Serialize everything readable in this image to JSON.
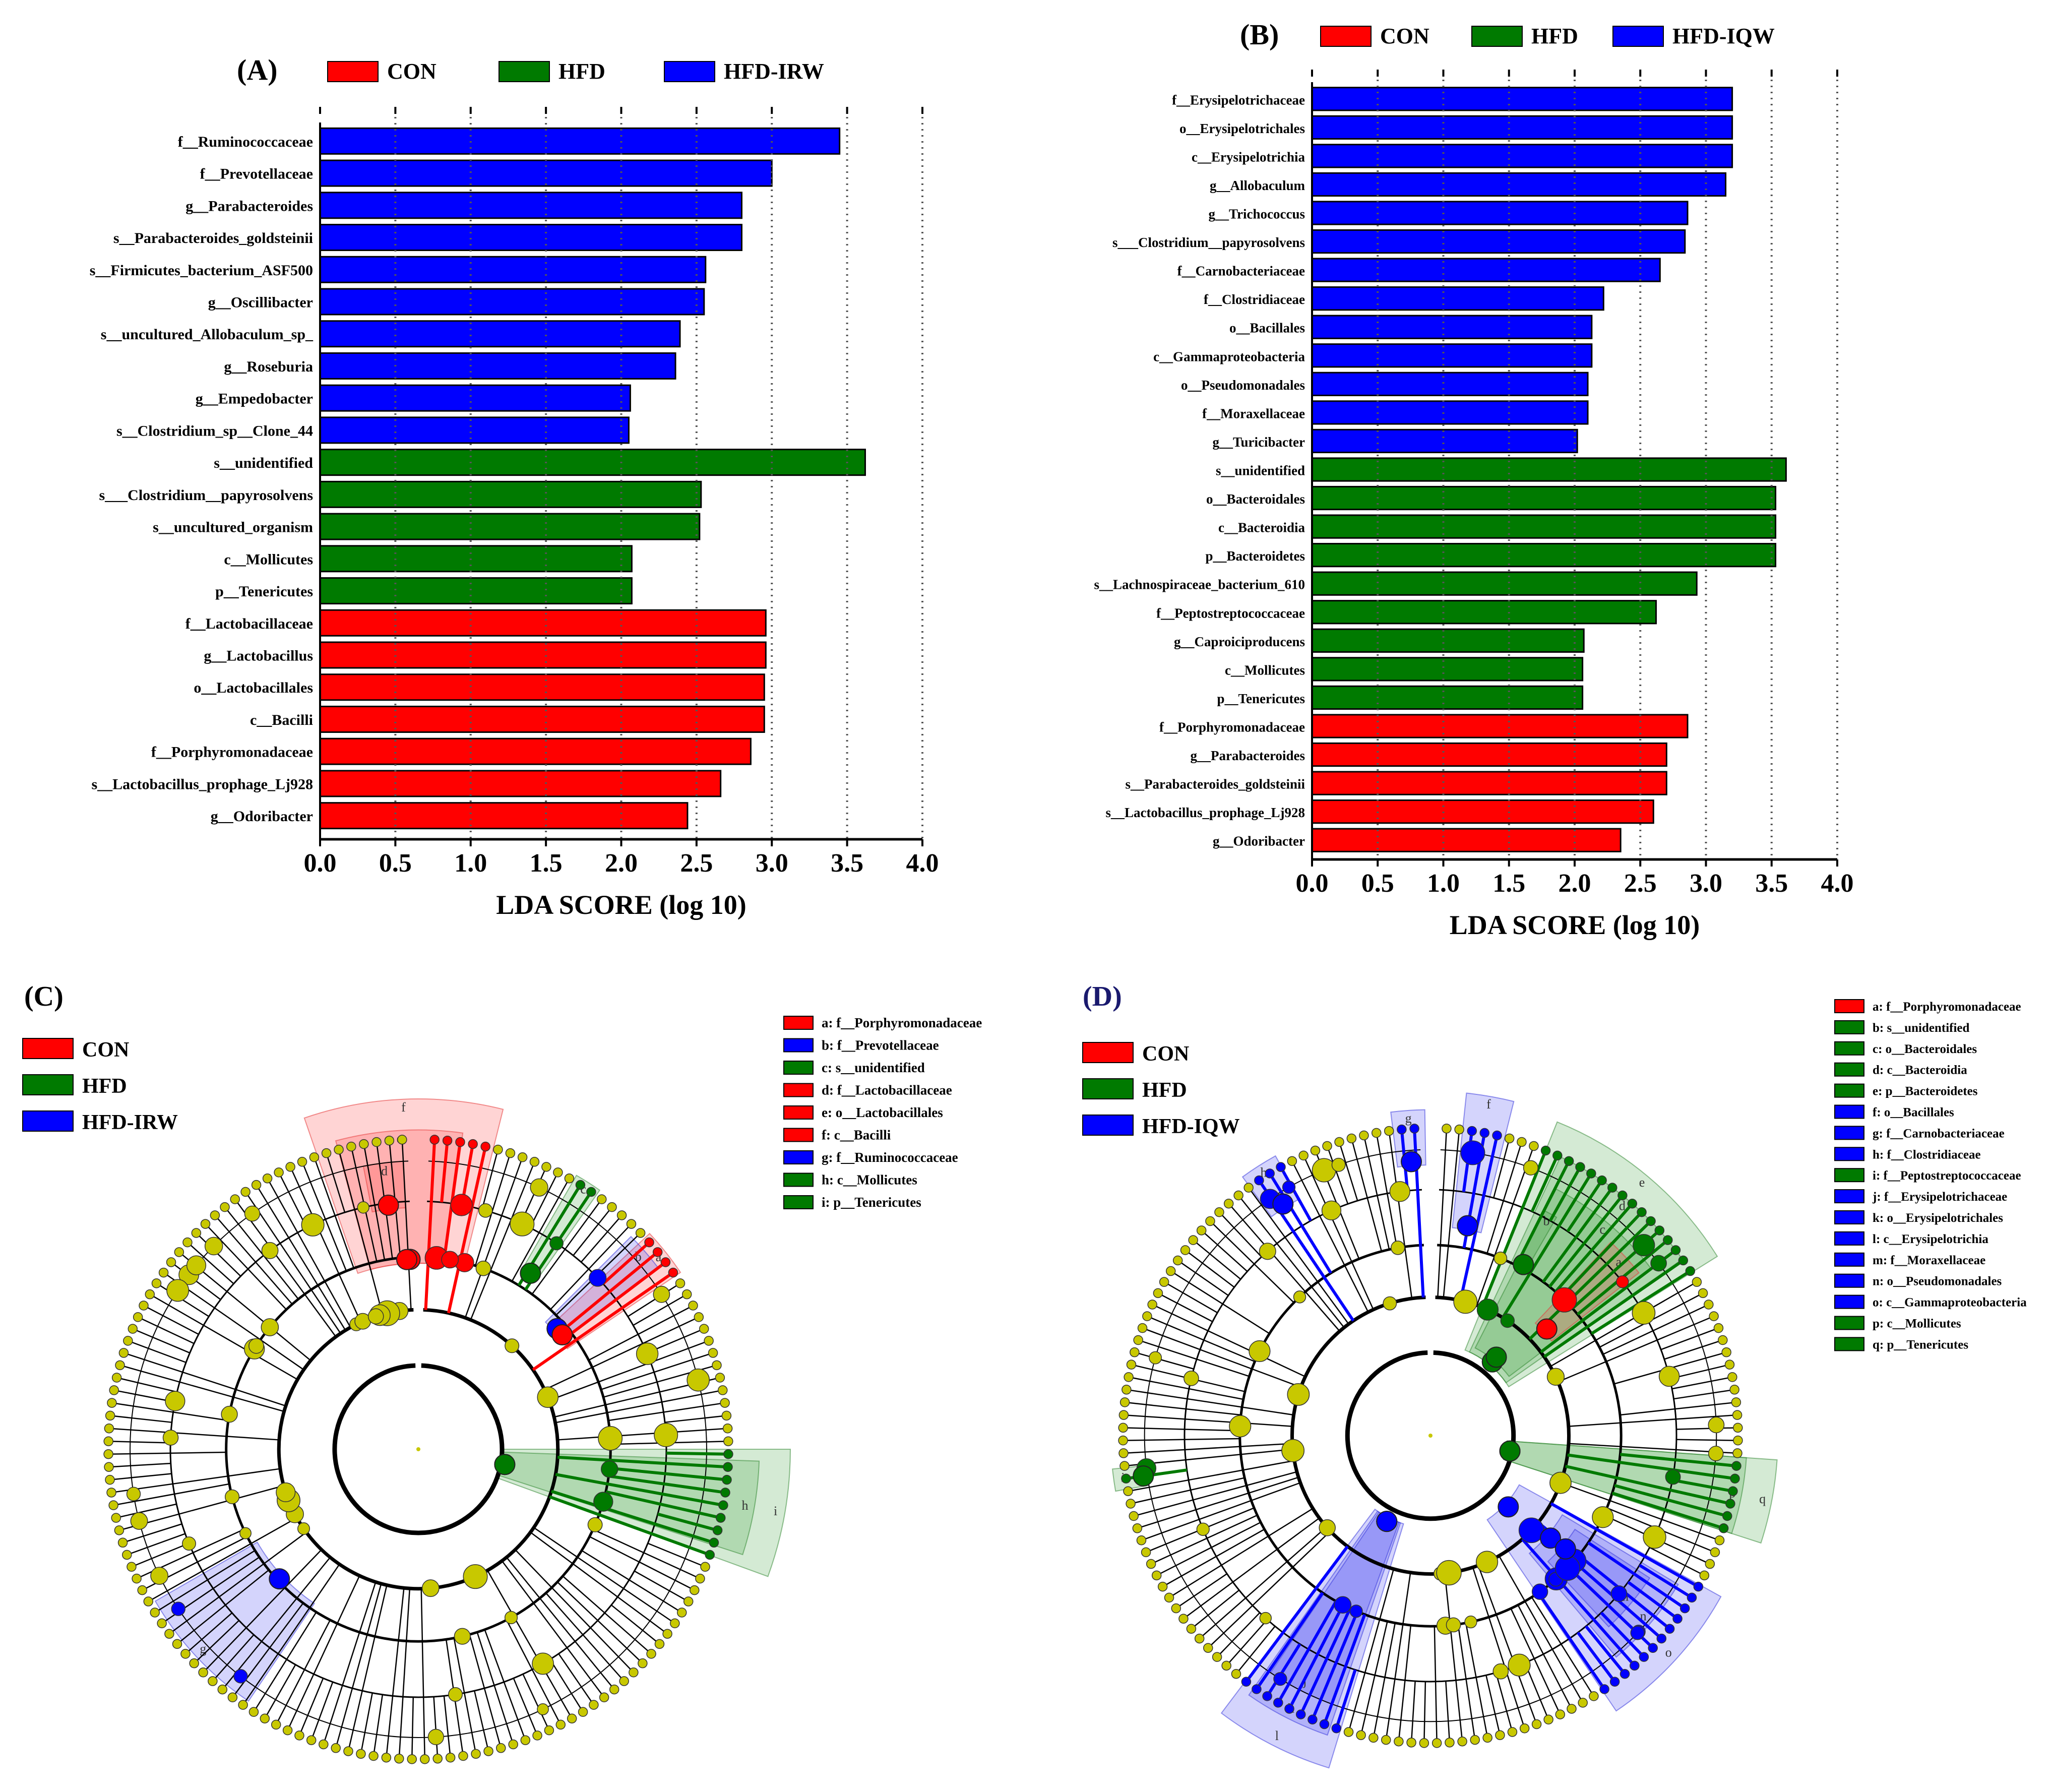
{
  "colors": {
    "CON": "#ff0000",
    "HFD": "#007a00",
    "HFD-IRW": "#0000ff",
    "HFD-IQW": "#0000ff",
    "node": "#c8c800"
  },
  "chart_data": [
    {
      "panel": "(A)",
      "type": "bar",
      "orientation": "horizontal",
      "xlabel": "LDA SCORE (log 10)",
      "xlim": [
        0,
        4
      ],
      "xticks": [
        "0.0",
        "0.5",
        "1.0",
        "1.5",
        "2.0",
        "2.5",
        "3.0",
        "3.5",
        "4.0"
      ],
      "legend": [
        "CON",
        "HFD",
        "HFD-IRW"
      ],
      "legend_placement": "top",
      "bars": [
        {
          "label": "f__Ruminococcaceae",
          "value": 3.45,
          "group": "HFD-IRW"
        },
        {
          "label": "f__Prevotellaceae",
          "value": 3.0,
          "group": "HFD-IRW"
        },
        {
          "label": "g__Parabacteroides",
          "value": 2.8,
          "group": "HFD-IRW"
        },
        {
          "label": "s__Parabacteroides_goldsteinii",
          "value": 2.8,
          "group": "HFD-IRW"
        },
        {
          "label": "s__Firmicutes_bacterium_ASF500",
          "value": 2.56,
          "group": "HFD-IRW"
        },
        {
          "label": "g__Oscillibacter",
          "value": 2.55,
          "group": "HFD-IRW"
        },
        {
          "label": "s__uncultured_Allobaculum_sp_",
          "value": 2.39,
          "group": "HFD-IRW"
        },
        {
          "label": "g__Roseburia",
          "value": 2.36,
          "group": "HFD-IRW"
        },
        {
          "label": "g__Empedobacter",
          "value": 2.06,
          "group": "HFD-IRW"
        },
        {
          "label": "s__Clostridium_sp__Clone_44",
          "value": 2.05,
          "group": "HFD-IRW"
        },
        {
          "label": "s__unidentified",
          "value": 3.62,
          "group": "HFD"
        },
        {
          "label": "s___Clostridium__papyrosolvens",
          "value": 2.53,
          "group": "HFD"
        },
        {
          "label": "s__uncultured_organism",
          "value": 2.52,
          "group": "HFD"
        },
        {
          "label": "c__Mollicutes",
          "value": 2.07,
          "group": "HFD"
        },
        {
          "label": "p__Tenericutes",
          "value": 2.07,
          "group": "HFD"
        },
        {
          "label": "f__Lactobacillaceae",
          "value": 2.96,
          "group": "CON"
        },
        {
          "label": "g__Lactobacillus",
          "value": 2.96,
          "group": "CON"
        },
        {
          "label": "o__Lactobacillales",
          "value": 2.95,
          "group": "CON"
        },
        {
          "label": "c__Bacilli",
          "value": 2.95,
          "group": "CON"
        },
        {
          "label": "f__Porphyromonadaceae",
          "value": 2.86,
          "group": "CON"
        },
        {
          "label": "s__Lactobacillus_prophage_Lj928",
          "value": 2.66,
          "group": "CON"
        },
        {
          "label": "g__Odoribacter",
          "value": 2.44,
          "group": "CON"
        }
      ]
    },
    {
      "panel": "(B)",
      "type": "bar",
      "orientation": "horizontal",
      "xlabel": "LDA SCORE (log 10)",
      "xlim": [
        0,
        4
      ],
      "xticks": [
        "0.0",
        "0.5",
        "1.0",
        "1.5",
        "2.0",
        "2.5",
        "3.0",
        "3.5",
        "4.0"
      ],
      "legend": [
        "CON",
        "HFD",
        "HFD-IQW"
      ],
      "legend_placement": "top",
      "bars": [
        {
          "label": "f__Erysipelotrichaceae",
          "value": 3.2,
          "group": "HFD-IQW"
        },
        {
          "label": "o__Erysipelotrichales",
          "value": 3.2,
          "group": "HFD-IQW"
        },
        {
          "label": "c__Erysipelotrichia",
          "value": 3.2,
          "group": "HFD-IQW"
        },
        {
          "label": "g__Allobaculum",
          "value": 3.15,
          "group": "HFD-IQW"
        },
        {
          "label": "g__Trichococcus",
          "value": 2.86,
          "group": "HFD-IQW"
        },
        {
          "label": "s___Clostridium__papyrosolvens",
          "value": 2.84,
          "group": "HFD-IQW"
        },
        {
          "label": "f__Carnobacteriaceae",
          "value": 2.65,
          "group": "HFD-IQW"
        },
        {
          "label": "f__Clostridiaceae",
          "value": 2.22,
          "group": "HFD-IQW"
        },
        {
          "label": "o__Bacillales",
          "value": 2.13,
          "group": "HFD-IQW"
        },
        {
          "label": "c__Gammaproteobacteria",
          "value": 2.13,
          "group": "HFD-IQW"
        },
        {
          "label": "o__Pseudomonadales",
          "value": 2.1,
          "group": "HFD-IQW"
        },
        {
          "label": "f__Moraxellaceae",
          "value": 2.1,
          "group": "HFD-IQW"
        },
        {
          "label": "g__Turicibacter",
          "value": 2.02,
          "group": "HFD-IQW"
        },
        {
          "label": "s__unidentified",
          "value": 3.61,
          "group": "HFD"
        },
        {
          "label": "o__Bacteroidales",
          "value": 3.53,
          "group": "HFD"
        },
        {
          "label": "c__Bacteroidia",
          "value": 3.53,
          "group": "HFD"
        },
        {
          "label": "p__Bacteroidetes",
          "value": 3.53,
          "group": "HFD"
        },
        {
          "label": "s__Lachnospiraceae_bacterium_610",
          "value": 2.93,
          "group": "HFD"
        },
        {
          "label": "f__Peptostreptococcaceae",
          "value": 2.62,
          "group": "HFD"
        },
        {
          "label": "g__Caproiciproducens",
          "value": 2.07,
          "group": "HFD"
        },
        {
          "label": "c__Mollicutes",
          "value": 2.06,
          "group": "HFD"
        },
        {
          "label": "p__Tenericutes",
          "value": 2.06,
          "group": "HFD"
        },
        {
          "label": "f__Porphyromonadaceae",
          "value": 2.86,
          "group": "CON"
        },
        {
          "label": "g__Parabacteroides",
          "value": 2.7,
          "group": "CON"
        },
        {
          "label": "s__Parabacteroides_goldsteinii",
          "value": 2.7,
          "group": "CON"
        },
        {
          "label": "s__Lactobacillus_prophage_Lj928",
          "value": 2.6,
          "group": "CON"
        },
        {
          "label": "g__Odoribacter",
          "value": 2.35,
          "group": "CON"
        }
      ]
    },
    {
      "panel": "(C)",
      "type": "cladogram",
      "legend": [
        "CON",
        "HFD",
        "HFD-IRW"
      ],
      "key": [
        {
          "text": "a: f__Porphyromonadaceae",
          "group": "CON"
        },
        {
          "text": "b: f__Prevotellaceae",
          "group": "HFD-IRW"
        },
        {
          "text": "c: s__unidentified",
          "group": "HFD"
        },
        {
          "text": "d: f__Lactobacillaceae",
          "group": "CON"
        },
        {
          "text": "e: o__Lactobacillales",
          "group": "CON"
        },
        {
          "text": "f: c__Bacilli",
          "group": "CON"
        },
        {
          "text": "g: f__Ruminococcaceae",
          "group": "HFD-IRW"
        },
        {
          "text": "h: c__Mollicutes",
          "group": "HFD"
        },
        {
          "text": "i: p__Tenericutes",
          "group": "HFD"
        }
      ],
      "sectors": [
        {
          "letter": "f",
          "group": "CON",
          "start": -19,
          "end": 14,
          "r1": 0.6,
          "r2": 1.13
        },
        {
          "letter": "e",
          "group": "CON",
          "start": -15,
          "end": 8,
          "r1": 0.6,
          "r2": 1.03
        },
        {
          "letter": "d",
          "group": "CON",
          "start": -11,
          "end": -3,
          "r1": 0.78,
          "r2": 0.93
        },
        {
          "letter": "c",
          "group": "HFD",
          "start": 30,
          "end": 35,
          "r1": 0.66,
          "r2": 1.02
        },
        {
          "letter": "b",
          "group": "HFD-IRW",
          "start": 45,
          "end": 53,
          "r1": 0.58,
          "r2": 0.97
        },
        {
          "letter": "a",
          "group": "CON",
          "start": 47,
          "end": 56,
          "r1": 0.58,
          "r2": 1.02
        },
        {
          "letter": "h",
          "group": "HFD",
          "start": 92,
          "end": 108,
          "r1": 0.27,
          "r2": 1.1
        },
        {
          "letter": "i",
          "group": "HFD",
          "start": 90,
          "end": 110,
          "r1": 0.27,
          "r2": 1.2
        },
        {
          "letter": "g",
          "group": "HFD-IRW",
          "start": 214,
          "end": 240,
          "r1": 0.6,
          "r2": 0.98
        }
      ]
    },
    {
      "panel": "(D)",
      "type": "cladogram",
      "legend": [
        "CON",
        "HFD",
        "HFD-IQW"
      ],
      "key": [
        {
          "text": "a: f__Porphyromonadaceae",
          "group": "CON"
        },
        {
          "text": "b: s__unidentified",
          "group": "HFD"
        },
        {
          "text": "c: o__Bacteroidales",
          "group": "HFD"
        },
        {
          "text": "d: c__Bacteroidia",
          "group": "HFD"
        },
        {
          "text": "e: p__Bacteroidetes",
          "group": "HFD"
        },
        {
          "text": "f: o__Bacillales",
          "group": "HFD-IQW"
        },
        {
          "text": "g: f__Carnobacteriaceae",
          "group": "HFD-IQW"
        },
        {
          "text": "h: f__Clostridiaceae",
          "group": "HFD-IQW"
        },
        {
          "text": "i: f__Peptostreptococcaceae",
          "group": "HFD"
        },
        {
          "text": "j: f__Erysipelotrichaceae",
          "group": "HFD-IQW"
        },
        {
          "text": "k: o__Erysipelotrichales",
          "group": "HFD-IQW"
        },
        {
          "text": "l: c__Erysipelotrichia",
          "group": "HFD-IQW"
        },
        {
          "text": "m: f__Moraxellaceae",
          "group": "HFD-IQW"
        },
        {
          "text": "n: o__Pseudomonadales",
          "group": "HFD-IQW"
        },
        {
          "text": "o: c__Gammaproteobacteria",
          "group": "HFD-IQW"
        },
        {
          "text": "p: c__Mollicutes",
          "group": "HFD"
        },
        {
          "text": "q: p__Tenericutes",
          "group": "HFD"
        }
      ],
      "sectors": [
        {
          "letter": "e",
          "group": "HFD",
          "start": 22,
          "end": 58,
          "r1": 0.3,
          "r2": 1.1
        },
        {
          "letter": "d",
          "group": "HFD",
          "start": 25,
          "end": 55,
          "r1": 0.3,
          "r2": 1.0
        },
        {
          "letter": "c",
          "group": "HFD",
          "start": 27,
          "end": 53,
          "r1": 0.32,
          "r2": 0.9
        },
        {
          "letter": "b",
          "group": "HFD",
          "start": 27,
          "end": 30,
          "r1": 0.62,
          "r2": 0.82
        },
        {
          "letter": "a",
          "group": "CON",
          "start": 43,
          "end": 52,
          "r1": 0.5,
          "r2": 0.86
        },
        {
          "letter": "q",
          "group": "HFD",
          "start": 94,
          "end": 108,
          "r1": 0.25,
          "r2": 1.13
        },
        {
          "letter": "p",
          "group": "HFD",
          "start": 94,
          "end": 108,
          "r1": 0.25,
          "r2": 1.03
        },
        {
          "letter": "o",
          "group": "HFD-IQW",
          "start": 119,
          "end": 146,
          "r1": 0.33,
          "r2": 1.08
        },
        {
          "letter": "n",
          "group": "HFD-IQW",
          "start": 121,
          "end": 140,
          "r1": 0.5,
          "r2": 0.94
        },
        {
          "letter": "m",
          "group": "HFD-IQW",
          "start": 123,
          "end": 137,
          "r1": 0.56,
          "r2": 0.85
        },
        {
          "letter": "l",
          "group": "HFD-IQW",
          "start": 197,
          "end": 217,
          "r1": 0.3,
          "r2": 1.13
        },
        {
          "letter": "k",
          "group": "HFD-IQW",
          "start": 199,
          "end": 215,
          "r1": 0.3,
          "r2": 1.03
        },
        {
          "letter": "j",
          "group": "HFD-IQW",
          "start": 200,
          "end": 214,
          "r1": 0.3,
          "r2": 0.93
        },
        {
          "letter": "i",
          "group": "HFD",
          "start": 260,
          "end": 264,
          "r1": 0.93,
          "r2": 1.04
        },
        {
          "letter": "h",
          "group": "HFD-IQW",
          "start": 324,
          "end": 331,
          "r1": 0.88,
          "r2": 1.04
        },
        {
          "letter": "g",
          "group": "HFD-IQW",
          "start": 353,
          "end": 359,
          "r1": 0.88,
          "r2": 1.06
        },
        {
          "letter": "f",
          "group": "HFD-IQW",
          "start": 6,
          "end": 14,
          "r1": 0.68,
          "r2": 1.12
        }
      ]
    }
  ]
}
